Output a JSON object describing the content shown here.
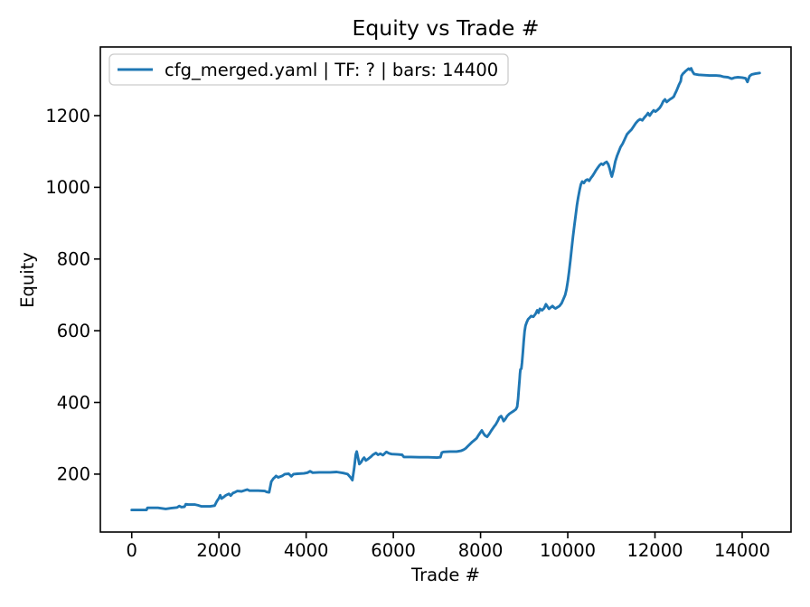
{
  "title": "Equity vs Trade #",
  "colors": {
    "line": "#1f77b4",
    "axis": "#000000",
    "legend_border": "#cccccc",
    "background": "#ffffff"
  },
  "legend": {
    "position": "upper left",
    "entries": [
      {
        "label": "cfg_merged.yaml | TF: ? | bars: 14400",
        "color": "#1f77b4"
      }
    ]
  },
  "chart_data": {
    "type": "line",
    "title": "Equity vs Trade #",
    "xlabel": "Trade #",
    "ylabel": "Equity",
    "grid": false,
    "legend_position": "upper left",
    "xlim": [
      -720,
      15120
    ],
    "ylim": [
      38.5,
      1391.5
    ],
    "x_ticks": [
      0,
      2000,
      4000,
      6000,
      8000,
      10000,
      12000,
      14000
    ],
    "y_ticks": [
      200,
      400,
      600,
      800,
      1000,
      1200
    ],
    "series": [
      {
        "name": "cfg_merged.yaml | TF: ? | bars: 14400",
        "color": "#1f77b4",
        "points": [
          [
            0,
            100
          ],
          [
            150,
            100
          ],
          [
            340,
            100
          ],
          [
            360,
            106
          ],
          [
            600,
            106
          ],
          [
            780,
            103
          ],
          [
            900,
            105
          ],
          [
            1040,
            107
          ],
          [
            1090,
            111
          ],
          [
            1140,
            108
          ],
          [
            1210,
            109
          ],
          [
            1240,
            116
          ],
          [
            1300,
            115
          ],
          [
            1450,
            115
          ],
          [
            1520,
            113
          ],
          [
            1600,
            110
          ],
          [
            1800,
            110
          ],
          [
            1900,
            112
          ],
          [
            1950,
            124
          ],
          [
            2000,
            133
          ],
          [
            2030,
            141
          ],
          [
            2060,
            132
          ],
          [
            2110,
            136
          ],
          [
            2160,
            141
          ],
          [
            2230,
            145
          ],
          [
            2270,
            140
          ],
          [
            2320,
            147
          ],
          [
            2360,
            149
          ],
          [
            2420,
            153
          ],
          [
            2520,
            152
          ],
          [
            2600,
            155
          ],
          [
            2650,
            157
          ],
          [
            2700,
            154
          ],
          [
            2900,
            154
          ],
          [
            3050,
            153
          ],
          [
            3100,
            150
          ],
          [
            3150,
            149
          ],
          [
            3200,
            179
          ],
          [
            3250,
            188
          ],
          [
            3280,
            191
          ],
          [
            3310,
            195
          ],
          [
            3360,
            191
          ],
          [
            3450,
            195
          ],
          [
            3510,
            200
          ],
          [
            3600,
            201
          ],
          [
            3660,
            194
          ],
          [
            3710,
            200
          ],
          [
            3800,
            201
          ],
          [
            3950,
            202
          ],
          [
            4030,
            204
          ],
          [
            4090,
            208
          ],
          [
            4150,
            204
          ],
          [
            4300,
            205
          ],
          [
            4550,
            205
          ],
          [
            4700,
            206
          ],
          [
            4850,
            203
          ],
          [
            4950,
            200
          ],
          [
            5010,
            192
          ],
          [
            5060,
            183
          ],
          [
            5100,
            215
          ],
          [
            5140,
            255
          ],
          [
            5160,
            263
          ],
          [
            5190,
            245
          ],
          [
            5220,
            228
          ],
          [
            5260,
            233
          ],
          [
            5300,
            242
          ],
          [
            5330,
            246
          ],
          [
            5370,
            238
          ],
          [
            5430,
            243
          ],
          [
            5480,
            248
          ],
          [
            5530,
            254
          ],
          [
            5600,
            259
          ],
          [
            5650,
            254
          ],
          [
            5700,
            257
          ],
          [
            5760,
            253
          ],
          [
            5840,
            262
          ],
          [
            5900,
            258
          ],
          [
            5960,
            256
          ],
          [
            6100,
            255
          ],
          [
            6200,
            254
          ],
          [
            6240,
            248
          ],
          [
            6400,
            248
          ],
          [
            6600,
            247
          ],
          [
            6800,
            247
          ],
          [
            7000,
            246
          ],
          [
            7080,
            247
          ],
          [
            7110,
            260
          ],
          [
            7150,
            262
          ],
          [
            7300,
            263
          ],
          [
            7450,
            263
          ],
          [
            7550,
            265
          ],
          [
            7610,
            268
          ],
          [
            7660,
            272
          ],
          [
            7710,
            278
          ],
          [
            7760,
            284
          ],
          [
            7810,
            290
          ],
          [
            7860,
            295
          ],
          [
            7910,
            300
          ],
          [
            7950,
            308
          ],
          [
            8000,
            317
          ],
          [
            8030,
            322
          ],
          [
            8060,
            315
          ],
          [
            8100,
            308
          ],
          [
            8150,
            304
          ],
          [
            8200,
            312
          ],
          [
            8250,
            322
          ],
          [
            8300,
            331
          ],
          [
            8350,
            339
          ],
          [
            8400,
            350
          ],
          [
            8430,
            358
          ],
          [
            8470,
            362
          ],
          [
            8500,
            356
          ],
          [
            8530,
            348
          ],
          [
            8570,
            354
          ],
          [
            8610,
            362
          ],
          [
            8660,
            368
          ],
          [
            8710,
            372
          ],
          [
            8760,
            376
          ],
          [
            8810,
            381
          ],
          [
            8840,
            388
          ],
          [
            8860,
            410
          ],
          [
            8880,
            440
          ],
          [
            8895,
            465
          ],
          [
            8905,
            480
          ],
          [
            8915,
            492
          ],
          [
            8935,
            494
          ],
          [
            8950,
            510
          ],
          [
            8970,
            540
          ],
          [
            8990,
            570
          ],
          [
            9010,
            598
          ],
          [
            9030,
            614
          ],
          [
            9060,
            624
          ],
          [
            9090,
            632
          ],
          [
            9130,
            637
          ],
          [
            9160,
            641
          ],
          [
            9210,
            639
          ],
          [
            9260,
            647
          ],
          [
            9300,
            657
          ],
          [
            9330,
            650
          ],
          [
            9360,
            661
          ],
          [
            9410,
            657
          ],
          [
            9460,
            663
          ],
          [
            9500,
            674
          ],
          [
            9540,
            666
          ],
          [
            9570,
            661
          ],
          [
            9610,
            665
          ],
          [
            9650,
            669
          ],
          [
            9690,
            664
          ],
          [
            9720,
            662
          ],
          [
            9760,
            665
          ],
          [
            9810,
            669
          ],
          [
            9860,
            677
          ],
          [
            9900,
            688
          ],
          [
            9940,
            700
          ],
          [
            9970,
            715
          ],
          [
            10000,
            738
          ],
          [
            10030,
            765
          ],
          [
            10060,
            795
          ],
          [
            10090,
            830
          ],
          [
            10120,
            862
          ],
          [
            10150,
            893
          ],
          [
            10180,
            920
          ],
          [
            10210,
            950
          ],
          [
            10240,
            972
          ],
          [
            10270,
            992
          ],
          [
            10300,
            1008
          ],
          [
            10330,
            1016
          ],
          [
            10370,
            1012
          ],
          [
            10410,
            1019
          ],
          [
            10450,
            1022
          ],
          [
            10490,
            1018
          ],
          [
            10530,
            1026
          ],
          [
            10570,
            1032
          ],
          [
            10610,
            1040
          ],
          [
            10650,
            1048
          ],
          [
            10690,
            1055
          ],
          [
            10730,
            1062
          ],
          [
            10770,
            1066
          ],
          [
            10810,
            1063
          ],
          [
            10850,
            1068
          ],
          [
            10890,
            1071
          ],
          [
            10930,
            1064
          ],
          [
            10960,
            1052
          ],
          [
            10990,
            1038
          ],
          [
            11010,
            1030
          ],
          [
            11050,
            1048
          ],
          [
            11090,
            1072
          ],
          [
            11130,
            1088
          ],
          [
            11170,
            1100
          ],
          [
            11210,
            1112
          ],
          [
            11260,
            1122
          ],
          [
            11310,
            1135
          ],
          [
            11360,
            1148
          ],
          [
            11410,
            1155
          ],
          [
            11460,
            1161
          ],
          [
            11510,
            1170
          ],
          [
            11560,
            1179
          ],
          [
            11610,
            1186
          ],
          [
            11660,
            1190
          ],
          [
            11710,
            1187
          ],
          [
            11760,
            1195
          ],
          [
            11810,
            1202
          ],
          [
            11840,
            1207
          ],
          [
            11880,
            1200
          ],
          [
            11930,
            1209
          ],
          [
            11970,
            1215
          ],
          [
            12010,
            1211
          ],
          [
            12060,
            1216
          ],
          [
            12110,
            1222
          ],
          [
            12150,
            1230
          ],
          [
            12190,
            1240
          ],
          [
            12230,
            1245
          ],
          [
            12270,
            1238
          ],
          [
            12310,
            1242
          ],
          [
            12350,
            1246
          ],
          [
            12390,
            1249
          ],
          [
            12430,
            1253
          ],
          [
            12460,
            1261
          ],
          [
            12490,
            1268
          ],
          [
            12520,
            1277
          ],
          [
            12550,
            1286
          ],
          [
            12590,
            1296
          ],
          [
            12610,
            1311
          ],
          [
            12640,
            1317
          ],
          [
            12670,
            1320
          ],
          [
            12700,
            1324
          ],
          [
            12740,
            1328
          ],
          [
            12770,
            1331
          ],
          [
            12800,
            1328
          ],
          [
            12830,
            1332
          ],
          [
            12860,
            1323
          ],
          [
            12900,
            1316
          ],
          [
            13000,
            1314
          ],
          [
            13120,
            1313
          ],
          [
            13250,
            1312
          ],
          [
            13400,
            1312
          ],
          [
            13500,
            1311
          ],
          [
            13580,
            1308
          ],
          [
            13670,
            1307
          ],
          [
            13760,
            1303
          ],
          [
            13830,
            1306
          ],
          [
            13900,
            1307
          ],
          [
            14000,
            1306
          ],
          [
            14080,
            1304
          ],
          [
            14120,
            1294
          ],
          [
            14170,
            1310
          ],
          [
            14220,
            1315
          ],
          [
            14300,
            1317
          ],
          [
            14400,
            1319
          ]
        ]
      }
    ]
  }
}
